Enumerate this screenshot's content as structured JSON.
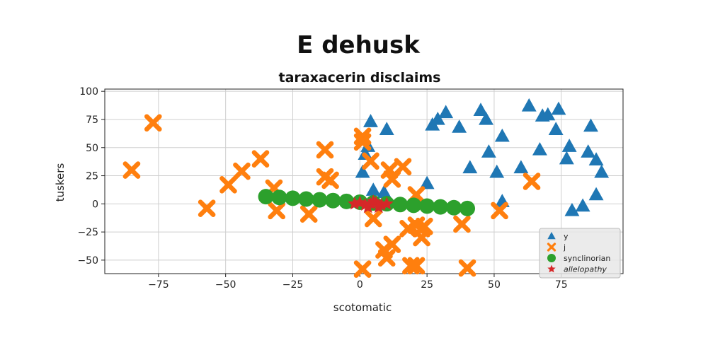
{
  "chart_data": {
    "type": "scatter",
    "title": "E dehusk",
    "subtitle": "taraxacerin disclaims",
    "xlabel": "scotomatic",
    "ylabel": "tuskers",
    "xlim": [
      -95,
      98
    ],
    "ylim": [
      -62,
      102
    ],
    "xticks": [
      -75,
      -50,
      -25,
      0,
      25,
      50,
      75
    ],
    "yticks": [
      -50,
      -25,
      0,
      25,
      50,
      75,
      100
    ],
    "xtick_labels": [
      "−75",
      "−50",
      "−25",
      "0",
      "25",
      "50",
      "75"
    ],
    "ytick_labels": [
      "−50",
      "−25",
      "0",
      "25",
      "50",
      "75",
      "100"
    ],
    "grid": true,
    "legend_position": "bottom-right",
    "series": [
      {
        "name": "y",
        "marker": "triangle",
        "color": "#1f77b4",
        "points": [
          [
            4,
            73
          ],
          [
            10,
            66
          ],
          [
            27,
            70
          ],
          [
            29,
            75
          ],
          [
            32,
            81
          ],
          [
            37,
            68
          ],
          [
            45,
            83
          ],
          [
            47,
            75
          ],
          [
            53,
            60
          ],
          [
            63,
            87
          ],
          [
            68,
            78
          ],
          [
            70,
            79
          ],
          [
            74,
            84
          ],
          [
            73,
            66
          ],
          [
            86,
            69
          ],
          [
            2,
            44
          ],
          [
            3,
            51
          ],
          [
            1,
            28
          ],
          [
            48,
            46
          ],
          [
            41,
            32
          ],
          [
            51,
            28
          ],
          [
            60,
            32
          ],
          [
            67,
            48
          ],
          [
            78,
            51
          ],
          [
            77,
            40
          ],
          [
            85,
            46
          ],
          [
            88,
            39
          ],
          [
            90,
            28
          ],
          [
            88,
            8
          ],
          [
            53,
            2
          ],
          [
            79,
            -6
          ],
          [
            83,
            -2
          ],
          [
            25,
            18
          ],
          [
            9,
            10
          ],
          [
            5,
            12
          ]
        ]
      },
      {
        "name": "j",
        "marker": "x",
        "color": "#ff7f0e",
        "points": [
          [
            -85,
            30
          ],
          [
            -77,
            72
          ],
          [
            -57,
            -4
          ],
          [
            -49,
            17
          ],
          [
            -44,
            29
          ],
          [
            -37,
            40
          ],
          [
            -32,
            14
          ],
          [
            -31,
            -6
          ],
          [
            -19,
            -9
          ],
          [
            -13,
            48
          ],
          [
            -13,
            24
          ],
          [
            -11,
            21
          ],
          [
            1,
            60
          ],
          [
            1,
            55
          ],
          [
            4,
            38
          ],
          [
            5,
            -13
          ],
          [
            11,
            30
          ],
          [
            12,
            22
          ],
          [
            16,
            33
          ],
          [
            18,
            -22
          ],
          [
            21,
            -19
          ],
          [
            23,
            -22
          ],
          [
            23,
            -30
          ],
          [
            24,
            -20
          ],
          [
            12,
            -36
          ],
          [
            9,
            -41
          ],
          [
            10,
            -48
          ],
          [
            19,
            -55
          ],
          [
            21,
            -55
          ],
          [
            40,
            -57
          ],
          [
            1,
            -58
          ],
          [
            38,
            -18
          ],
          [
            52,
            -6
          ],
          [
            64,
            20
          ],
          [
            21,
            8
          ]
        ]
      },
      {
        "name": "synclinorian",
        "marker": "circle",
        "color": "#2ca02c",
        "points": [
          [
            -35,
            6.4
          ],
          [
            -30,
            5.7
          ],
          [
            -25,
            5
          ],
          [
            -20,
            4.3
          ],
          [
            -15,
            3.6
          ],
          [
            -10,
            2.9
          ],
          [
            -5,
            2.2
          ],
          [
            0,
            1.5
          ],
          [
            5,
            0.8
          ],
          [
            10,
            0.1
          ],
          [
            15,
            -0.6
          ],
          [
            20,
            -1.3
          ],
          [
            25,
            -2
          ],
          [
            30,
            -2.7
          ],
          [
            35,
            -3.4
          ],
          [
            40,
            -4.1
          ]
        ]
      },
      {
        "name": "allelopathy",
        "marker": "star",
        "color": "#d62728",
        "points": [
          [
            -2,
            0
          ],
          [
            0,
            1
          ],
          [
            2,
            -1
          ],
          [
            4,
            0
          ],
          [
            6,
            1
          ],
          [
            8,
            -1
          ],
          [
            10,
            0
          ],
          [
            3,
            -3
          ],
          [
            5,
            2
          ],
          [
            7,
            -3
          ]
        ]
      }
    ]
  }
}
